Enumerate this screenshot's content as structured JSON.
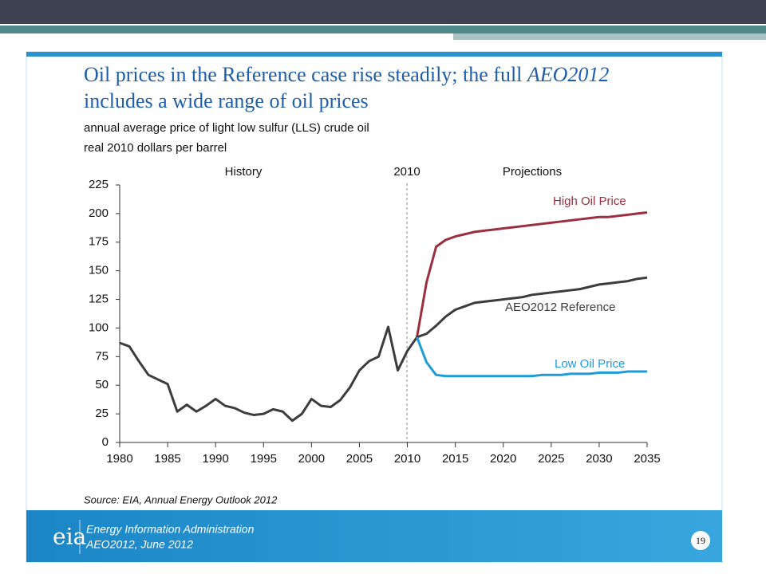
{
  "chart_data": {
    "type": "line",
    "title": [
      "Oil prices in the Reference case rise steadily; the full",
      "AEO2012",
      "includes a wide range of oil prices"
    ],
    "subtitle": [
      "annual average price of light low sulfur (LLS) crude oil",
      "real 2010 dollars per barrel"
    ],
    "annotations": [
      "History",
      "2010",
      "Projections"
    ],
    "source": "Source:  EIA, Annual Energy Outlook 2012",
    "x": [
      1980,
      1981,
      1982,
      1983,
      1984,
      1985,
      1986,
      1987,
      1988,
      1989,
      1990,
      1991,
      1992,
      1993,
      1994,
      1995,
      1996,
      1997,
      1998,
      1999,
      2000,
      2001,
      2002,
      2003,
      2004,
      2005,
      2006,
      2007,
      2008,
      2009,
      2010,
      2011,
      2012,
      2013,
      2014,
      2015,
      2016,
      2017,
      2018,
      2019,
      2020,
      2021,
      2022,
      2023,
      2024,
      2025,
      2026,
      2027,
      2028,
      2029,
      2030,
      2031,
      2032,
      2033,
      2034,
      2035
    ],
    "series": [
      {
        "name": "High Oil Price",
        "color": "#9b2f3f",
        "values": [
          null,
          null,
          null,
          null,
          null,
          null,
          null,
          null,
          null,
          null,
          null,
          null,
          null,
          null,
          null,
          null,
          null,
          null,
          null,
          null,
          null,
          null,
          null,
          null,
          null,
          null,
          null,
          null,
          null,
          null,
          null,
          92,
          140,
          171,
          177,
          180,
          182,
          184,
          185,
          186,
          187,
          188,
          189,
          190,
          191,
          192,
          193,
          194,
          195,
          196,
          197,
          197,
          198,
          199,
          200,
          201
        ]
      },
      {
        "name": "AEO2012 Reference",
        "color": "#3c3c3c",
        "values": [
          87,
          84,
          71,
          59,
          55,
          51,
          27,
          33,
          27,
          32,
          38,
          32,
          30,
          26,
          24,
          25,
          29,
          27,
          19,
          25,
          38,
          32,
          31,
          37,
          48,
          63,
          71,
          75,
          101,
          63,
          80,
          92,
          95,
          102,
          110,
          116,
          119,
          122,
          123,
          124,
          125,
          126,
          127,
          129,
          130,
          131,
          132,
          133,
          134,
          136,
          138,
          139,
          140,
          141,
          143,
          144
        ]
      },
      {
        "name": "Low Oil Price",
        "color": "#1e9cd7",
        "values": [
          null,
          null,
          null,
          null,
          null,
          null,
          null,
          null,
          null,
          null,
          null,
          null,
          null,
          null,
          null,
          null,
          null,
          null,
          null,
          null,
          null,
          null,
          null,
          null,
          null,
          null,
          null,
          null,
          null,
          null,
          null,
          92,
          70,
          59,
          58,
          58,
          58,
          58,
          58,
          58,
          58,
          58,
          58,
          58,
          59,
          59,
          59,
          60,
          60,
          60,
          61,
          61,
          61,
          62,
          62,
          62
        ]
      }
    ],
    "xlim": [
      1980,
      2035
    ],
    "xticks": [
      1980,
      1985,
      1990,
      1995,
      2000,
      2005,
      2010,
      2015,
      2020,
      2025,
      2030,
      2035
    ],
    "ylim": [
      0,
      225
    ],
    "yticks": [
      0,
      25,
      50,
      75,
      100,
      125,
      150,
      175,
      200,
      225
    ],
    "grid": false
  },
  "footer": {
    "logo": "eia",
    "organization": "Energy Information Administration",
    "report": "AEO2012, June 2012",
    "page": "19"
  }
}
